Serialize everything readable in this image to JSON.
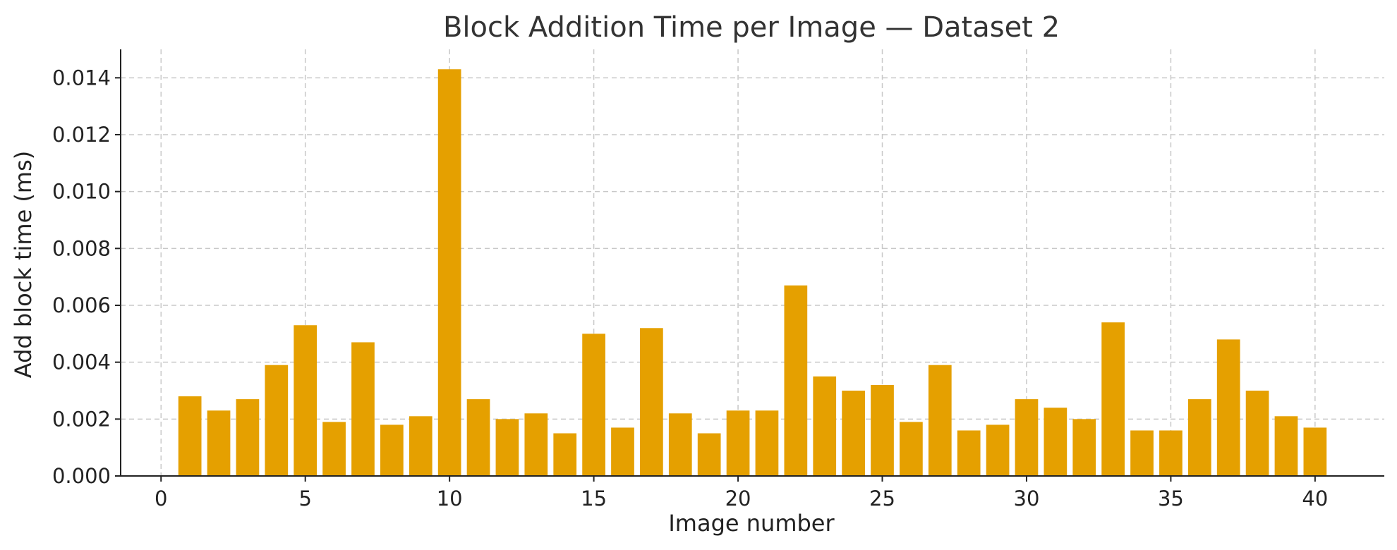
{
  "chart_data": {
    "type": "bar",
    "title": "Block Addition Time per Image — Dataset 2",
    "xlabel": "Image number",
    "ylabel": "Add block time (ms)",
    "x": [
      1,
      2,
      3,
      4,
      5,
      6,
      7,
      8,
      9,
      10,
      11,
      12,
      13,
      14,
      15,
      16,
      17,
      18,
      19,
      20,
      21,
      22,
      23,
      24,
      25,
      26,
      27,
      28,
      29,
      30,
      31,
      32,
      33,
      34,
      35,
      36,
      37,
      38,
      39,
      40
    ],
    "values": [
      0.0028,
      0.0023,
      0.0027,
      0.0039,
      0.0053,
      0.0019,
      0.0047,
      0.0018,
      0.0021,
      0.0143,
      0.0027,
      0.002,
      0.0022,
      0.0015,
      0.005,
      0.0017,
      0.0052,
      0.0022,
      0.0015,
      0.0023,
      0.0023,
      0.0067,
      0.0035,
      0.003,
      0.0032,
      0.0019,
      0.0039,
      0.0016,
      0.0018,
      0.0027,
      0.0024,
      0.002,
      0.0054,
      0.0016,
      0.0016,
      0.0027,
      0.0048,
      0.003,
      0.0021,
      0.0017
    ],
    "xlim": [
      -1.4,
      42.4
    ],
    "ylim": [
      0,
      0.015
    ],
    "xticks": [
      0,
      5,
      10,
      15,
      20,
      25,
      30,
      35,
      40
    ],
    "xtick_labels": [
      "0",
      "5",
      "10",
      "15",
      "20",
      "25",
      "30",
      "35",
      "40"
    ],
    "yticks": [
      0,
      0.002,
      0.004,
      0.006,
      0.008,
      0.01,
      0.012,
      0.014
    ],
    "ytick_labels": [
      "0.000",
      "0.002",
      "0.004",
      "0.006",
      "0.008",
      "0.010",
      "0.012",
      "0.014"
    ],
    "grid": true,
    "bar_color": "#E5A000"
  }
}
